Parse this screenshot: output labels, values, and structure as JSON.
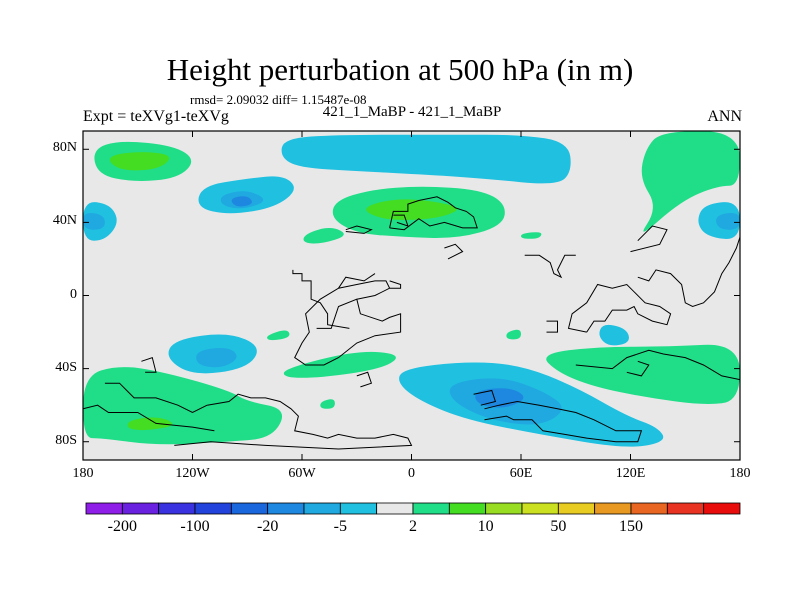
{
  "title": "Height perturbation at 500 hPa (in m)",
  "stats_line": "rmsd= 2.09032  diff= 1.15487e-08",
  "experiment_label": "Expt = teXVg1-teXVg",
  "case_label": "421_1_MaBP - 421_1_MaBP",
  "season_label": "ANN",
  "map": {
    "projection": "cylindrical equidistant",
    "lat_ticks": [
      {
        "label": "80N",
        "value": 80
      },
      {
        "label": "40N",
        "value": 40
      },
      {
        "label": "0",
        "value": 0
      },
      {
        "label": "40S",
        "value": -40
      },
      {
        "label": "80S",
        "value": -80
      }
    ],
    "lon_ticks": [
      {
        "label": "180",
        "value": -180
      },
      {
        "label": "120W",
        "value": -120
      },
      {
        "label": "60W",
        "value": -60
      },
      {
        "label": "0",
        "value": 0
      },
      {
        "label": "60E",
        "value": 60
      },
      {
        "label": "120E",
        "value": 120
      },
      {
        "label": "180",
        "value": 180
      }
    ],
    "background_color": "#e8e8e8",
    "coastline_color": "#000000"
  },
  "colorbar": {
    "colors": [
      "#8e1ee8",
      "#6a22e0",
      "#3a32e0",
      "#2244dd",
      "#1a66dd",
      "#1e88e0",
      "#20a8e0",
      "#20c0e0",
      "#e8e8e8",
      "#20dd88",
      "#44dd22",
      "#99dd22",
      "#cce022",
      "#e8cc22",
      "#e89922",
      "#e86622",
      "#e83322",
      "#e80c0c"
    ],
    "labels": [
      {
        "text": "-200",
        "boundary": 1
      },
      {
        "text": "-100",
        "boundary": 3
      },
      {
        "text": "-20",
        "boundary": 5
      },
      {
        "text": "-5",
        "boundary": 7
      },
      {
        "text": "2",
        "boundary": 9
      },
      {
        "text": "10",
        "boundary": 11
      },
      {
        "text": "50",
        "boundary": 13
      },
      {
        "text": "150",
        "boundary": 15
      }
    ]
  },
  "field_colors": {
    "weak_negative": "#20c0e0",
    "moderate_negative": "#20a8e0",
    "strong_negative": "#1e88e0",
    "weak_positive": "#20dd88",
    "moderate_positive": "#44dd22"
  }
}
